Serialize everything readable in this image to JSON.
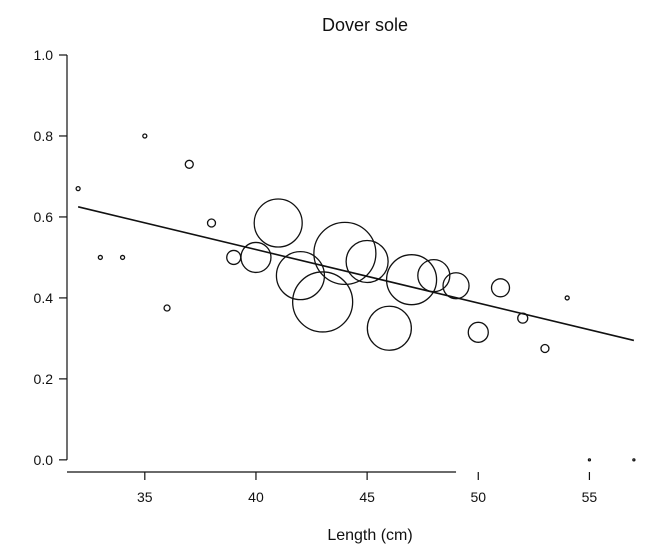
{
  "chart_data": {
    "type": "scatter",
    "title": "Dover sole",
    "xlabel": "Length (cm)",
    "ylabel": "",
    "xlim": [
      31.5,
      57.5
    ],
    "ylim": [
      -0.03,
      1.0
    ],
    "x_ticks": [
      "35",
      "40",
      "45",
      "50",
      "55"
    ],
    "y_ticks": [
      "0.0",
      "0.2",
      "0.4",
      "0.6",
      "0.8",
      "1.0"
    ],
    "grid": false,
    "legend": "none",
    "series": [
      {
        "points": [
          {
            "x": 32,
            "y": 0.67,
            "r": 2
          },
          {
            "x": 33,
            "y": 0.5,
            "r": 2
          },
          {
            "x": 34,
            "y": 0.5,
            "r": 2
          },
          {
            "x": 35,
            "y": 0.8,
            "r": 2
          },
          {
            "x": 36,
            "y": 0.375,
            "r": 3
          },
          {
            "x": 37,
            "y": 0.73,
            "r": 4
          },
          {
            "x": 38,
            "y": 0.585,
            "r": 4
          },
          {
            "x": 39,
            "y": 0.5,
            "r": 7
          },
          {
            "x": 40,
            "y": 0.5,
            "r": 15
          },
          {
            "x": 41,
            "y": 0.585,
            "r": 24
          },
          {
            "x": 42,
            "y": 0.455,
            "r": 24
          },
          {
            "x": 43,
            "y": 0.39,
            "r": 30
          },
          {
            "x": 44,
            "y": 0.51,
            "r": 31
          },
          {
            "x": 45,
            "y": 0.49,
            "r": 21
          },
          {
            "x": 46,
            "y": 0.325,
            "r": 22
          },
          {
            "x": 47,
            "y": 0.445,
            "r": 25
          },
          {
            "x": 48,
            "y": 0.455,
            "r": 16
          },
          {
            "x": 49,
            "y": 0.43,
            "r": 13
          },
          {
            "x": 50,
            "y": 0.315,
            "r": 10
          },
          {
            "x": 51,
            "y": 0.425,
            "r": 9
          },
          {
            "x": 52,
            "y": 0.35,
            "r": 5
          },
          {
            "x": 53,
            "y": 0.275,
            "r": 4
          },
          {
            "x": 54,
            "y": 0.4,
            "r": 2
          },
          {
            "x": 55,
            "y": 0.0,
            "r": 1
          },
          {
            "x": 57,
            "y": 0.0,
            "r": 1
          }
        ]
      }
    ],
    "trend_line": {
      "x": [
        32,
        57
      ],
      "y": [
        0.625,
        0.295
      ]
    }
  }
}
